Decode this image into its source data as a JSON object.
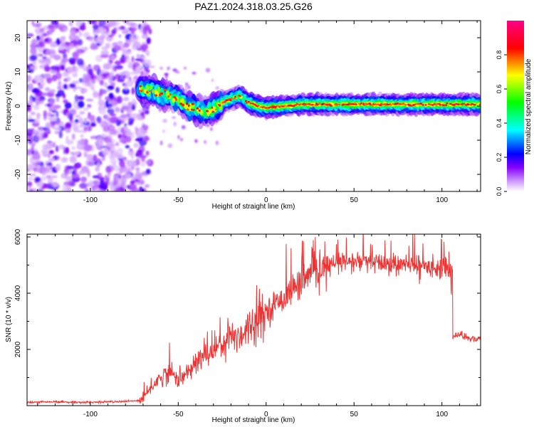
{
  "figure_title": "PAZ1.2024.318.03.25.G26",
  "chart_data": [
    {
      "type": "heatmap",
      "title": "PAZ1.2024.318.03.25.G26",
      "xlabel": "Height of straight line (km)",
      "ylabel": "Frequency (Hz)",
      "xlim": [
        -136,
        122
      ],
      "ylim": [
        -25,
        25
      ],
      "x_ticks": [
        -100,
        -50,
        0,
        50,
        100
      ],
      "y_ticks": [
        -20,
        -10,
        0,
        10,
        20
      ],
      "colorbar": {
        "label": "Normalized spectral amplitude",
        "range": [
          0,
          1
        ],
        "ticks": [
          "0.0",
          "0.2",
          "0.4",
          "0.6",
          "0.8"
        ],
        "colors": [
          "#ffffff",
          "#cc99ff",
          "#8800ff",
          "#0000ff",
          "#00ffff",
          "#00ff00",
          "#ffff00",
          "#ff0000",
          "#ff0088"
        ]
      },
      "ridge": {
        "x": [
          -70,
          -65,
          -60,
          -55,
          -50,
          -45,
          -40,
          -35,
          -30,
          -25,
          -20,
          -15,
          -10,
          -5,
          0,
          10,
          20,
          30,
          40,
          50,
          60,
          70,
          80,
          90,
          100,
          110,
          120
        ],
        "y": [
          5,
          4.5,
          3.5,
          3,
          2,
          0,
          -1,
          -2,
          -1,
          1,
          2,
          3,
          1,
          0,
          -0.5,
          0,
          0.5,
          0.5,
          0.5,
          0.5,
          0.5,
          0.5,
          0.5,
          0.5,
          0.5,
          0.5,
          0.5
        ]
      },
      "noise_region_x": [
        -136,
        -70
      ],
      "grid": false
    },
    {
      "type": "line",
      "xlabel": "Height of straight line (km)",
      "ylabel": "SNR (10 * v/v)",
      "xlim": [
        -136,
        122
      ],
      "ylim": [
        0,
        6100
      ],
      "x_ticks": [
        -100,
        -50,
        0,
        50,
        100
      ],
      "y_ticks": [
        2000,
        4000,
        6000
      ],
      "line_color": "#ee3333",
      "series": [
        {
          "x": [
            -136,
            -120,
            -100,
            -80,
            -72,
            -68,
            -65,
            -60,
            -55,
            -50,
            -45,
            -40,
            -35,
            -30,
            -25,
            -20,
            -15,
            -10,
            -5,
            0,
            5,
            10,
            15,
            20,
            25,
            30,
            35,
            40,
            45,
            50,
            55,
            60,
            65,
            70,
            75,
            80,
            85,
            90,
            95,
            100,
            105,
            106,
            110,
            115,
            122
          ],
          "y": [
            120,
            130,
            120,
            150,
            180,
            400,
            700,
            1000,
            1200,
            950,
            1100,
            1500,
            1800,
            2000,
            2250,
            2450,
            2500,
            2800,
            3100,
            3350,
            3600,
            3850,
            4150,
            4400,
            4650,
            4800,
            4950,
            5050,
            5100,
            5100,
            5150,
            5100,
            5050,
            5050,
            5000,
            5000,
            5000,
            4950,
            4950,
            4900,
            4850,
            2450,
            2550,
            2400,
            2350
          ]
        }
      ],
      "grid": false
    }
  ]
}
